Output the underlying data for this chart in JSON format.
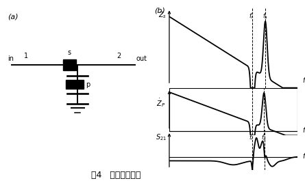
{
  "fig_width": 4.45,
  "fig_height": 2.68,
  "dpi": 100,
  "bg_color": "#ffffff",
  "label_a": "(a)",
  "label_b": "(b)",
  "caption": "图4   滤波器原理图",
  "fr": 6.5,
  "fa": 7.5,
  "xmax": 10.0
}
